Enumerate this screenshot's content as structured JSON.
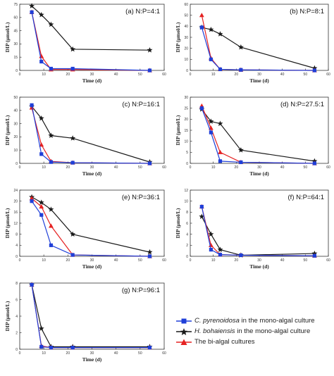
{
  "chart_data": [
    {
      "type": "line",
      "annotation": "(a) N:P=4:1",
      "xlabel": "Time (d)",
      "ylabel": "DIP (μmol/L)",
      "xlim": [
        0,
        60
      ],
      "ylim": [
        0,
        75
      ],
      "xticks": [
        0,
        10,
        20,
        30,
        40,
        50,
        60
      ],
      "yticks": [
        0,
        15,
        30,
        45,
        60,
        75
      ],
      "series": [
        {
          "key": "cp",
          "x": [
            5,
            9,
            13,
            22,
            54
          ],
          "y": [
            66,
            10,
            2,
            2,
            0
          ]
        },
        {
          "key": "hb",
          "x": [
            5,
            9,
            13,
            22,
            54
          ],
          "y": [
            73,
            63,
            52,
            24,
            23
          ]
        },
        {
          "key": "bi",
          "x": [
            5,
            9,
            13,
            22,
            54
          ],
          "y": [
            66,
            16,
            1,
            1,
            0
          ]
        }
      ]
    },
    {
      "type": "line",
      "annotation": "(b) N:P=8:1",
      "xlabel": "Time (d)",
      "ylabel": "DIP (μmol/L)",
      "xlim": [
        0,
        60
      ],
      "ylim": [
        0,
        60
      ],
      "xticks": [
        0,
        10,
        20,
        30,
        40,
        50,
        60
      ],
      "yticks": [
        0,
        10,
        20,
        30,
        40,
        50,
        60
      ],
      "series": [
        {
          "key": "cp",
          "x": [
            5,
            9,
            13,
            22,
            54
          ],
          "y": [
            39,
            10,
            1,
            0.5,
            0
          ]
        },
        {
          "key": "hb",
          "x": [
            5,
            9,
            13,
            22,
            54
          ],
          "y": [
            39,
            37,
            33,
            21,
            2
          ]
        },
        {
          "key": "bi",
          "x": [
            5,
            9,
            13,
            22,
            54
          ],
          "y": [
            50,
            11,
            1,
            0.5,
            0
          ]
        }
      ]
    },
    {
      "type": "line",
      "annotation": "(c) N:P=16:1",
      "xlabel": "Time (d)",
      "ylabel": "DIP (μmol/L)",
      "xlim": [
        0,
        60
      ],
      "ylim": [
        0,
        50
      ],
      "xticks": [
        0,
        10,
        20,
        30,
        40,
        50,
        60
      ],
      "yticks": [
        0,
        10,
        20,
        30,
        40,
        50
      ],
      "series": [
        {
          "key": "cp",
          "x": [
            5,
            9,
            13,
            22,
            54
          ],
          "y": [
            44,
            7,
            1,
            0.5,
            0
          ]
        },
        {
          "key": "hb",
          "x": [
            5,
            9,
            13,
            22,
            54
          ],
          "y": [
            43,
            34,
            21,
            19,
            1
          ]
        },
        {
          "key": "bi",
          "x": [
            5,
            9,
            13,
            22,
            54
          ],
          "y": [
            42,
            14,
            1.5,
            0.5,
            0
          ]
        }
      ]
    },
    {
      "type": "line",
      "annotation": "(d) N:P=27.5:1",
      "xlabel": "Time (d)",
      "ylabel": "DIP (μmol/L)",
      "xlim": [
        0,
        60
      ],
      "ylim": [
        0,
        30
      ],
      "xticks": [
        0,
        10,
        20,
        30,
        40,
        50,
        60
      ],
      "yticks": [
        0,
        5,
        10,
        15,
        20,
        25,
        30
      ],
      "series": [
        {
          "key": "cp",
          "x": [
            5,
            9,
            13,
            22,
            54
          ],
          "y": [
            25,
            14,
            1,
            0.5,
            0
          ]
        },
        {
          "key": "hb",
          "x": [
            5,
            9,
            13,
            22,
            54
          ],
          "y": [
            24.5,
            19,
            18,
            6,
            1
          ]
        },
        {
          "key": "bi",
          "x": [
            5,
            9,
            13,
            22,
            54
          ],
          "y": [
            26,
            16,
            5,
            0.5,
            0
          ]
        }
      ]
    },
    {
      "type": "line",
      "annotation": "(e) N:P=36:1",
      "xlabel": "Time (d)",
      "ylabel": "DIP (μmol/L)",
      "xlim": [
        0,
        60
      ],
      "ylim": [
        0,
        24
      ],
      "xticks": [
        0,
        10,
        20,
        30,
        40,
        50,
        60
      ],
      "yticks": [
        0,
        4,
        8,
        12,
        16,
        20,
        24
      ],
      "series": [
        {
          "key": "cp",
          "x": [
            5,
            9,
            13,
            22,
            54
          ],
          "y": [
            20,
            15,
            4,
            0.5,
            0
          ]
        },
        {
          "key": "hb",
          "x": [
            5,
            9,
            13,
            22,
            54
          ],
          "y": [
            21.5,
            19.5,
            17,
            8,
            1.5
          ]
        },
        {
          "key": "bi",
          "x": [
            5,
            9,
            13,
            22,
            54
          ],
          "y": [
            21,
            18,
            11,
            0.5,
            0
          ]
        }
      ]
    },
    {
      "type": "line",
      "annotation": "(f) N:P=64:1",
      "xlabel": "Time (d)",
      "ylabel": "DIP (μmol/L)",
      "xlim": [
        0,
        60
      ],
      "ylim": [
        0,
        12
      ],
      "xticks": [
        0,
        10,
        20,
        30,
        40,
        50,
        60
      ],
      "yticks": [
        0,
        2,
        4,
        6,
        8,
        10,
        12
      ],
      "series": [
        {
          "key": "cp",
          "x": [
            5,
            9,
            13,
            22,
            54
          ],
          "y": [
            9,
            1.2,
            0.3,
            0.2,
            0.1
          ]
        },
        {
          "key": "hb",
          "x": [
            5,
            9,
            13,
            22,
            54
          ],
          "y": [
            7.2,
            4,
            1.2,
            0.2,
            0.5
          ]
        },
        {
          "key": "bi",
          "x": [
            5,
            9,
            13,
            22,
            54
          ],
          "y": [
            9,
            2,
            0.3,
            0.2,
            0.1
          ]
        }
      ]
    },
    {
      "type": "line",
      "annotation": "(g) N:P=96:1",
      "xlabel": "Time (d)",
      "ylabel": "DIP (μmol/L)",
      "xlim": [
        0,
        60
      ],
      "ylim": [
        0,
        8
      ],
      "xticks": [
        0,
        10,
        20,
        30,
        40,
        50,
        60
      ],
      "yticks": [
        0,
        2,
        4,
        6,
        8
      ],
      "series": [
        {
          "key": "cp",
          "x": [
            5,
            9,
            13,
            22,
            54
          ],
          "y": [
            7.8,
            0.3,
            0.2,
            0.2,
            0.2
          ]
        },
        {
          "key": "hb",
          "x": [
            5,
            9,
            13,
            22,
            54
          ],
          "y": [
            7.8,
            2.5,
            0.3,
            0.3,
            0.3
          ]
        },
        {
          "key": "bi",
          "x": [
            5,
            9,
            13,
            22,
            54
          ],
          "y": [
            7.8,
            0.4,
            0.2,
            0.2,
            0.2
          ]
        }
      ]
    }
  ],
  "legend": {
    "placement": "bottom-right",
    "entries": [
      {
        "key": "cp",
        "species": "C. pyrenoidosa",
        "rest": " in the mono-algal culture",
        "color": "#1f3fd8",
        "marker": "square"
      },
      {
        "key": "hb",
        "species": "H. bohaiensis",
        "rest": " in the mono-algal culture",
        "color": "#1a1a1a",
        "marker": "star"
      },
      {
        "key": "bi",
        "species": "",
        "rest": "The bi-algal cultures",
        "color": "#e52222",
        "marker": "triangle"
      }
    ]
  }
}
